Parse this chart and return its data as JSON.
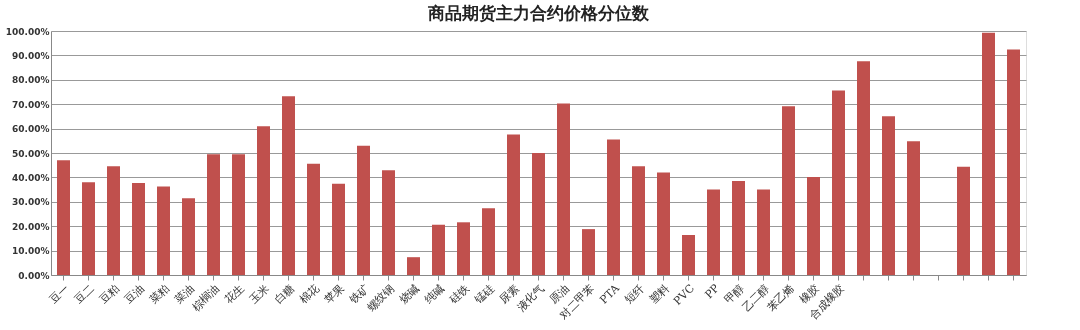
{
  "chart_data": {
    "type": "bar",
    "title": "商品期货主力合约价格分位数",
    "categories": [
      "豆一",
      "豆二",
      "豆粕",
      "豆油",
      "菜粕",
      "菜油",
      "棕榈油",
      "花生",
      "玉米",
      "白糖",
      "棉花",
      "苹果",
      "铁矿",
      "螺纹钢",
      "烧碱",
      "纯碱",
      "硅铁",
      "锰硅",
      "尿素",
      "液化气",
      "原油",
      "对二甲苯",
      "PTA",
      "短纤",
      "塑料",
      "PVC",
      "PP",
      "甲醇",
      "乙二醇",
      "苯乙烯",
      "橡胶",
      "合成橡胶",
      null,
      null,
      null,
      null,
      null,
      null,
      null
    ],
    "values": [
      47,
      38,
      44.6,
      37.7,
      36.3,
      31.5,
      49.5,
      49.5,
      61,
      73.3,
      45.6,
      37.4,
      53,
      42.9,
      7.3,
      20.6,
      21.6,
      27.4,
      57.6,
      50,
      70.3,
      18.8,
      55.5,
      44.6,
      42,
      16.4,
      35,
      38.5,
      35,
      69.2,
      40.2,
      75.6,
      87.6,
      65.1,
      54.8,
      null,
      44.4,
      99.3,
      92.4
    ],
    "color": "#c0504d",
    "ylim": [
      0,
      100
    ],
    "yticks": [
      {
        "value": 0,
        "label": "0.00%"
      },
      {
        "value": 10,
        "label": "10.00%"
      },
      {
        "value": 20,
        "label": "20.00%"
      },
      {
        "value": 30,
        "label": "30.00%"
      },
      {
        "value": 40,
        "label": "40.00%"
      },
      {
        "value": 50,
        "label": "50.00%"
      },
      {
        "value": 60,
        "label": "60.00%"
      },
      {
        "value": 70,
        "label": "70.00%"
      },
      {
        "value": 80,
        "label": "80.00%"
      },
      {
        "value": 90,
        "label": "90.00%"
      },
      {
        "value": 100,
        "label": "100.00%"
      }
    ],
    "grid": "y"
  }
}
